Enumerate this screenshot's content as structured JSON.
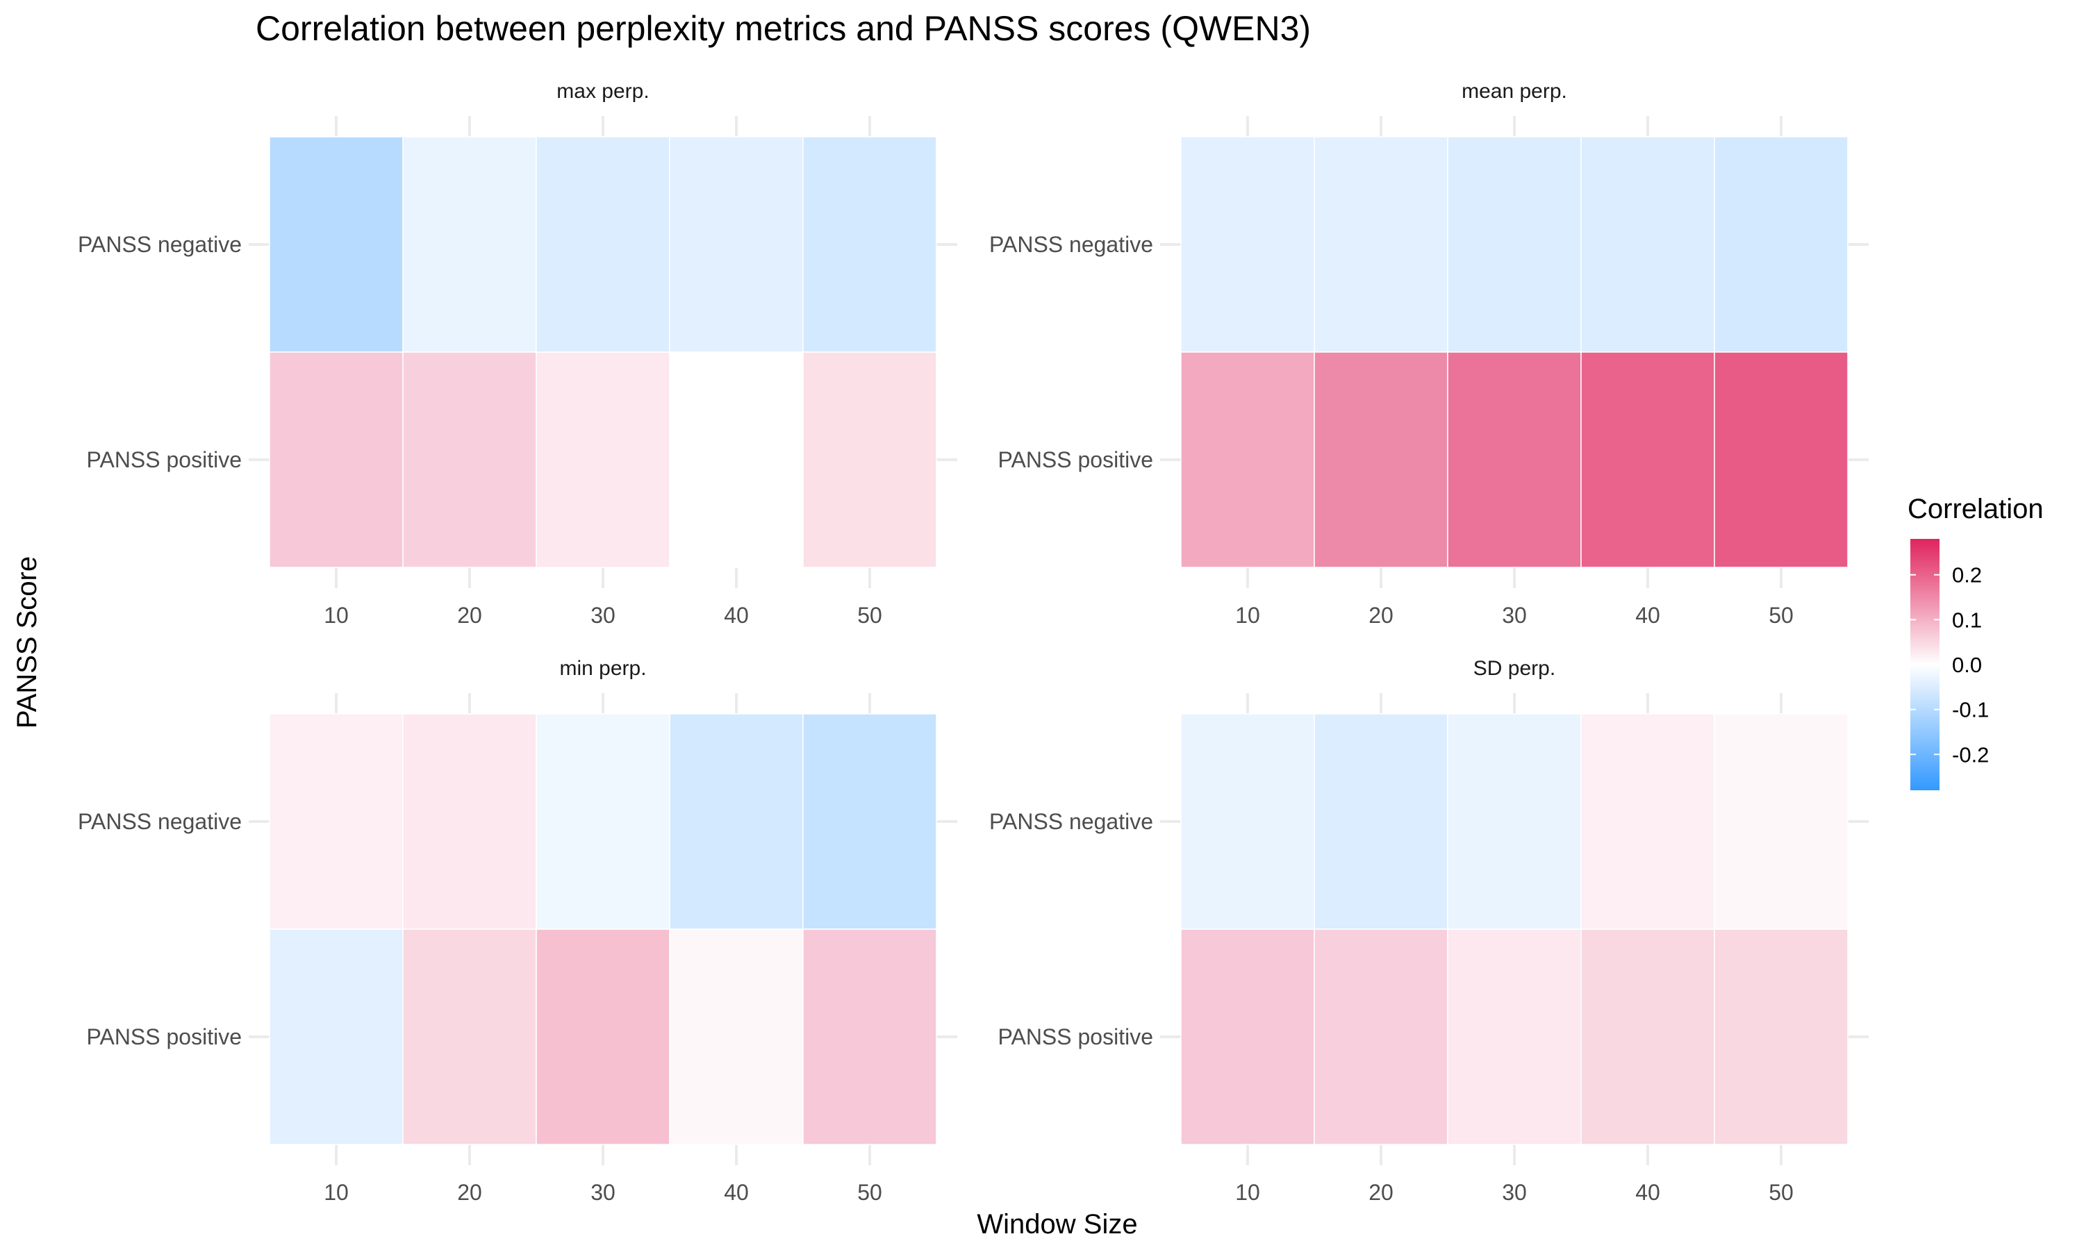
{
  "chart_data": {
    "type": "heatmap",
    "title": "Correlation between perplexity metrics and PANSS scores (QWEN3)",
    "xlabel": "Window Size",
    "ylabel": "PANSS Score",
    "x": [
      10,
      20,
      30,
      40,
      50
    ],
    "y": [
      "PANSS negative",
      "PANSS positive"
    ],
    "grid": true,
    "legend": {
      "title": "Correlation",
      "position": "right",
      "range": [
        -0.28,
        0.28
      ],
      "ticks": [
        "0.2",
        "0.1",
        "0.0",
        "-0.1",
        "-0.2"
      ],
      "tick_values": [
        0.2,
        0.1,
        0.0,
        -0.1,
        -0.2
      ],
      "low_color": "#3399ff",
      "mid_color": "#ffffff",
      "high_color": "#e0245e"
    },
    "facets": [
      {
        "title": "max perp.",
        "values": {
          "PANSS negative": [
            -0.1,
            -0.03,
            -0.05,
            -0.04,
            -0.06
          ],
          "PANSS positive": [
            0.07,
            0.06,
            0.03,
            0.0,
            0.04
          ]
        }
      },
      {
        "title": "mean perp.",
        "values": {
          "PANSS negative": [
            -0.04,
            -0.04,
            -0.05,
            -0.05,
            -0.06
          ],
          "PANSS positive": [
            0.11,
            0.15,
            0.18,
            0.2,
            0.21
          ]
        }
      },
      {
        "title": "min perp.",
        "values": {
          "PANSS negative": [
            0.02,
            0.03,
            -0.02,
            -0.06,
            -0.08
          ],
          "PANSS positive": [
            -0.04,
            0.05,
            0.08,
            0.01,
            0.07
          ]
        }
      },
      {
        "title": "SD perp.",
        "values": {
          "PANSS negative": [
            -0.03,
            -0.05,
            -0.03,
            0.02,
            0.01
          ],
          "PANSS positive": [
            0.07,
            0.06,
            0.03,
            0.05,
            0.05
          ]
        }
      }
    ]
  }
}
